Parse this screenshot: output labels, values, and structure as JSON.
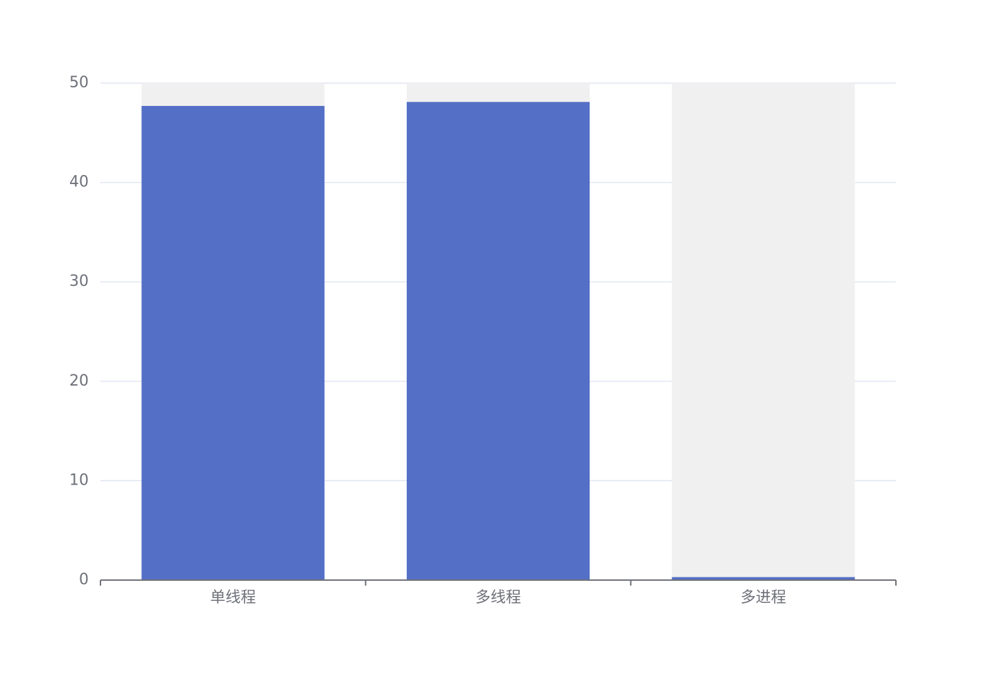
{
  "chart_data": {
    "type": "bar",
    "categories": [
      "单线程",
      "多线程",
      "多进程"
    ],
    "values": [
      47.7,
      48.1,
      0.3
    ],
    "color": "#5470c6",
    "background_color": "#f0f0f0",
    "ylim": [
      0,
      50
    ],
    "yticks": [
      0,
      10,
      20,
      30,
      40,
      50
    ],
    "grid": true
  }
}
